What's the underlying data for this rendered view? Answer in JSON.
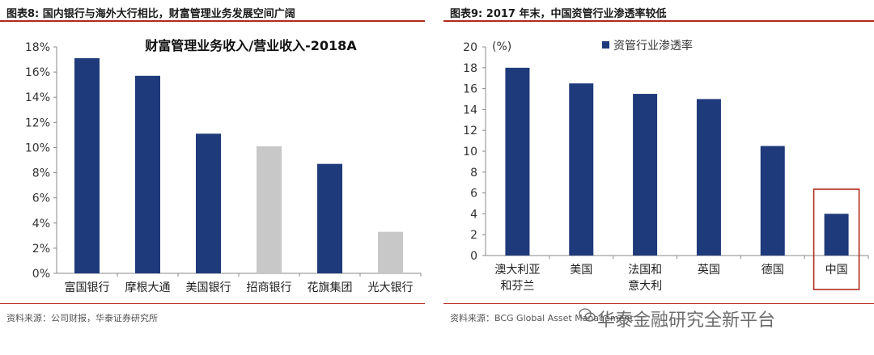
{
  "left": {
    "fig_title": "图表8:  国内银行与海外大行相比，财富管理业务发展空间广阔",
    "source": "资料来源：公司财报，华泰证券研究所"
  },
  "right": {
    "fig_title": "图表9:  2017 年末，中国资管行业渗透率较低",
    "source": "资料来源：BCG Global Asset Management"
  },
  "watermark": "华泰金融研究全新平台",
  "colors": {
    "navy": "#1f3a7a",
    "gray": "#c8c8c8",
    "rule": "#b22a1f",
    "highlight_box": "#b22a1f"
  },
  "chart_data": [
    {
      "type": "bar",
      "title": "财富管理业务收入/营业收入-2018A",
      "categories": [
        "富国银行",
        "摩根大通",
        "美国银行",
        "招商银行",
        "花旗集团",
        "光大银行"
      ],
      "values": [
        17.1,
        15.7,
        11.1,
        10.1,
        8.7,
        3.3
      ],
      "bar_colors": [
        "navy",
        "navy",
        "navy",
        "gray",
        "navy",
        "gray"
      ],
      "ylim": [
        0,
        18
      ],
      "yticks": [
        "0%",
        "2%",
        "4%",
        "6%",
        "8%",
        "10%",
        "12%",
        "14%",
        "16%",
        "18%"
      ],
      "unit": "%"
    },
    {
      "type": "bar",
      "title": "",
      "categories": [
        "澳大利亚\n和芬兰",
        "美国",
        "法国和\n意大利",
        "英国",
        "德国",
        "中国"
      ],
      "series": [
        {
          "name": "资管行业渗透率",
          "values": [
            18,
            16.5,
            15.5,
            15,
            10.5,
            4
          ]
        }
      ],
      "ylim": [
        0,
        20
      ],
      "yticks": [
        "0",
        "2",
        "4",
        "6",
        "8",
        "10",
        "12",
        "14",
        "16",
        "18",
        "20"
      ],
      "unit_label": "(%)",
      "legend_position": "top-left",
      "highlight": "中国"
    }
  ]
}
